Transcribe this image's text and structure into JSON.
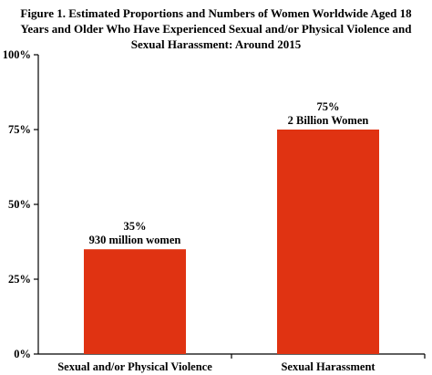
{
  "chart_data": {
    "type": "bar",
    "title_lines": [
      "Figure 1. Estimated Proportions and Numbers of Women Worldwide Aged 18",
      "Years and Older Who Have Experienced Sexual and/or Physical Violence and",
      "Sexual Harassment: Around 2015"
    ],
    "categories": [
      "Sexual and/or Physical Violence",
      "Sexual Harassment"
    ],
    "values": [
      35,
      75
    ],
    "value_labels": [
      "35%",
      "75%"
    ],
    "count_labels": [
      "930 million women",
      "2 Billion Women"
    ],
    "ylim": [
      0,
      100
    ],
    "yticks": [
      0,
      25,
      50,
      75,
      100
    ],
    "ytick_labels": [
      "0%",
      "25%",
      "50%",
      "75%",
      "100%"
    ],
    "xlabel": "",
    "ylabel": "",
    "grid": false,
    "bar_color": "#e03312",
    "axis_color": "#000000"
  }
}
